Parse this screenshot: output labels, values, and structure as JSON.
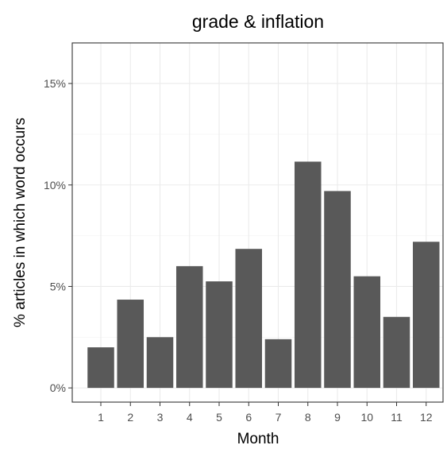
{
  "chart_data": {
    "type": "bar",
    "title": "grade & inflation",
    "xlabel": "Month",
    "ylabel": "% articles in which word occurs",
    "categories": [
      "1",
      "2",
      "3",
      "4",
      "5",
      "6",
      "7",
      "8",
      "9",
      "10",
      "11",
      "12"
    ],
    "values": [
      2.0,
      4.35,
      2.5,
      6.0,
      5.25,
      6.85,
      2.4,
      11.15,
      9.7,
      5.5,
      3.5,
      7.2
    ],
    "value_unit": "%",
    "ylim": [
      -0.7,
      17.0
    ],
    "yticks": [
      0,
      5,
      10,
      15
    ],
    "ytick_labels": [
      "0%",
      "5%",
      "10%",
      "15%"
    ],
    "grid": true,
    "legend": "none",
    "colors": {
      "bar": "#595959",
      "panel_border": "#333333",
      "grid_major": "#ebebeb",
      "grid_minor": "#f3f3f3",
      "tick_label": "#4d4d4d"
    }
  }
}
